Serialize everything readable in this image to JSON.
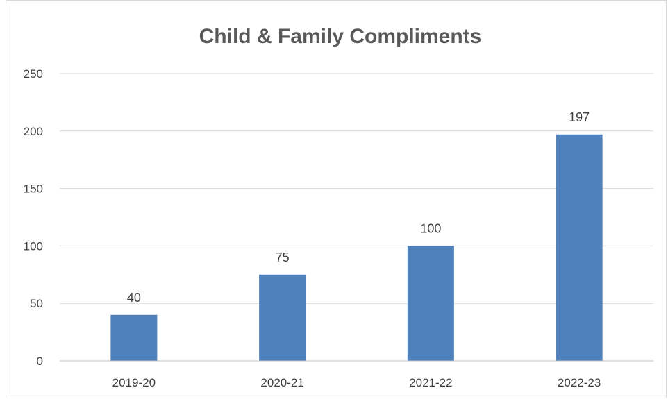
{
  "chart_data": {
    "type": "bar",
    "title": "Child & Family Compliments",
    "categories": [
      "2019-20",
      "2020-21",
      "2021-22",
      "2022-23"
    ],
    "values": [
      40,
      75,
      100,
      197
    ],
    "data_labels": [
      "40",
      "75",
      "100",
      "197"
    ],
    "ylim": [
      0,
      250
    ],
    "yticks": [
      "0",
      "50",
      "100",
      "150",
      "200",
      "250"
    ],
    "xlabel": "",
    "ylabel": "",
    "grid": true,
    "legend": "none",
    "bar_color": "#4f81bd"
  }
}
